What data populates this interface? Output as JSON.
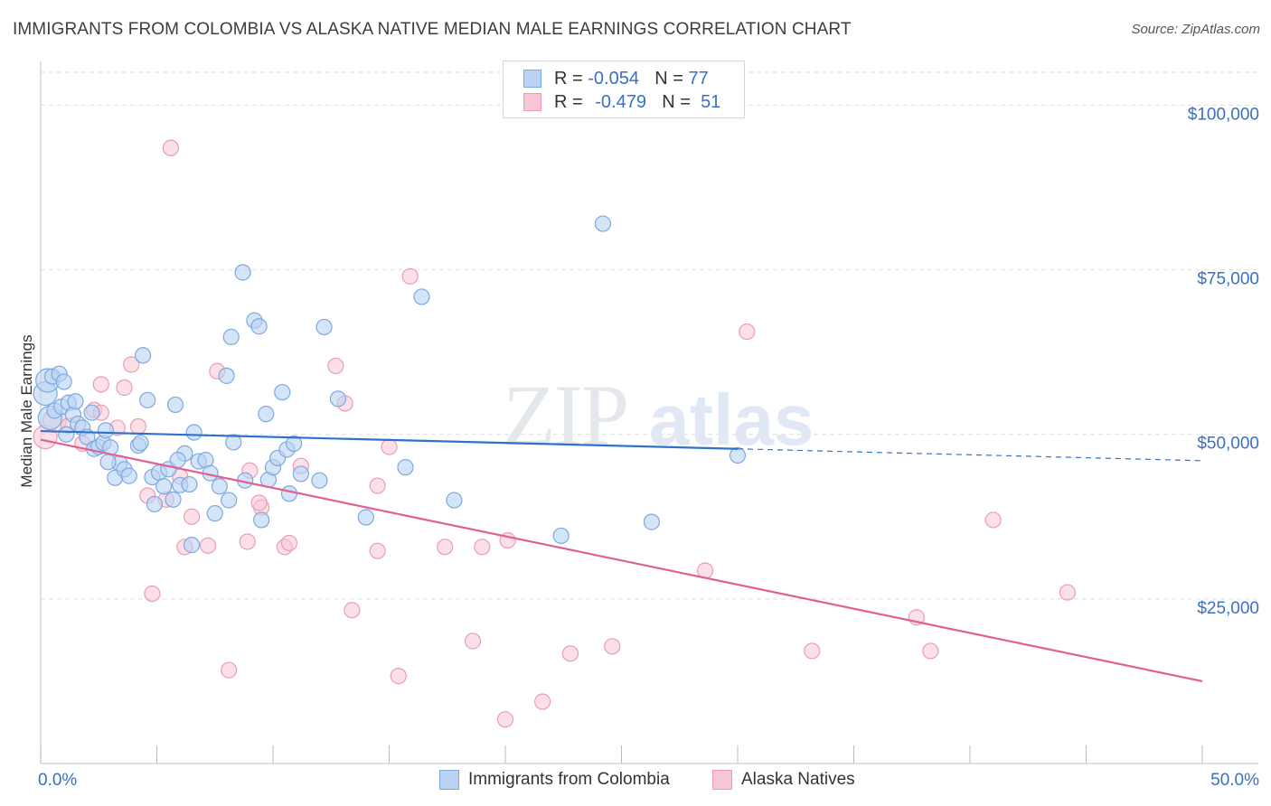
{
  "title": "IMMIGRANTS FROM COLOMBIA VS ALASKA NATIVE MEDIAN MALE EARNINGS CORRELATION CHART",
  "source": "Source: ZipAtlas.com",
  "watermark": {
    "zip": "ZIP",
    "atlas": "atlas"
  },
  "legend": {
    "r_label": "R =",
    "n_label": "N =",
    "series": [
      {
        "r": "-0.054",
        "n": "77"
      },
      {
        "r": "-0.479",
        "n": "51"
      }
    ]
  },
  "colors": {
    "blue_fill": "#b9d3f4",
    "blue_stroke": "#7ea8e2",
    "blue_line": "#2f72cc",
    "pink_fill": "#f8c7d6",
    "pink_stroke": "#ee9bb5",
    "pink_line": "#e0608f",
    "axis_text": "#3a70c4",
    "grid": "#dedede"
  },
  "chart_data": {
    "type": "scatter",
    "title": "IMMIGRANTS FROM COLOMBIA VS ALASKA NATIVE MEDIAN MALE EARNINGS CORRELATION CHART",
    "xlabel": "",
    "ylabel": "Median Male Earnings",
    "xlim": [
      0,
      50
    ],
    "ylim": [
      0,
      105000
    ],
    "x_tick_labels": [
      "0.0%",
      "50.0%"
    ],
    "y_ticks": [
      25000,
      50000,
      75000,
      100000
    ],
    "y_tick_labels": [
      "$25,000",
      "$50,000",
      "$75,000",
      "$100,000"
    ],
    "grid": true,
    "legend": "top-center",
    "series": [
      {
        "name": "Immigrants from Colombia",
        "r": -0.054,
        "n": 77,
        "trend": {
          "x": [
            0,
            30
          ],
          "y": [
            50500,
            47800
          ],
          "dashed_to_x": 50,
          "dashed_to_y": 46000
        },
        "points": [
          [
            0.2,
            56200,
            "lg"
          ],
          [
            0.3,
            58200,
            "lg"
          ],
          [
            0.4,
            52500,
            "lg"
          ],
          [
            0.5,
            58800,
            "md"
          ],
          [
            0.6,
            53600,
            "md"
          ],
          [
            0.8,
            59200,
            "md"
          ],
          [
            0.9,
            54200,
            "md"
          ],
          [
            1.0,
            58000,
            "md"
          ],
          [
            1.1,
            50000,
            "md"
          ],
          [
            1.2,
            54800,
            "md"
          ],
          [
            1.4,
            53000,
            "md"
          ],
          [
            1.5,
            55000,
            "md"
          ],
          [
            1.6,
            51600,
            "md"
          ],
          [
            1.8,
            51000,
            "md"
          ],
          [
            2.0,
            49600,
            "md"
          ],
          [
            2.2,
            53300,
            "md"
          ],
          [
            2.3,
            47800,
            "md"
          ],
          [
            2.5,
            48100,
            "md"
          ],
          [
            2.7,
            48700,
            "md"
          ],
          [
            2.8,
            50600,
            "md"
          ],
          [
            3.0,
            48000,
            "md"
          ],
          [
            3.2,
            43400,
            "md"
          ],
          [
            3.4,
            45600,
            "md"
          ],
          [
            3.6,
            44700,
            "md"
          ],
          [
            3.8,
            43700,
            "md"
          ],
          [
            4.2,
            48300,
            "md"
          ],
          [
            4.3,
            48700,
            "md"
          ],
          [
            4.4,
            62000,
            "md"
          ],
          [
            4.6,
            55200,
            "md"
          ],
          [
            4.8,
            43500,
            "md"
          ],
          [
            4.9,
            39400,
            "md"
          ],
          [
            5.1,
            44200,
            "md"
          ],
          [
            5.3,
            42100,
            "md"
          ],
          [
            5.5,
            44700,
            "md"
          ],
          [
            5.7,
            40100,
            "md"
          ],
          [
            5.8,
            54500,
            "md"
          ],
          [
            6.0,
            42300,
            "md"
          ],
          [
            6.2,
            47100,
            "md"
          ],
          [
            6.4,
            42400,
            "md"
          ],
          [
            6.5,
            33200,
            "md"
          ],
          [
            6.6,
            50300,
            "md"
          ],
          [
            6.8,
            45900,
            "md"
          ],
          [
            7.1,
            46100,
            "md"
          ],
          [
            7.3,
            44100,
            "md"
          ],
          [
            7.5,
            38000,
            "md"
          ],
          [
            7.7,
            42100,
            "md"
          ],
          [
            8.0,
            58900,
            "md"
          ],
          [
            8.1,
            40000,
            "md"
          ],
          [
            8.2,
            64800,
            "md"
          ],
          [
            8.3,
            48800,
            "md"
          ],
          [
            8.7,
            74600,
            "md"
          ],
          [
            8.8,
            43000,
            "md"
          ],
          [
            9.2,
            67300,
            "md"
          ],
          [
            9.4,
            66400,
            "md"
          ],
          [
            9.5,
            37000,
            "md"
          ],
          [
            9.7,
            53100,
            "md"
          ],
          [
            9.8,
            43100,
            "md"
          ],
          [
            10.0,
            45000,
            "md"
          ],
          [
            10.2,
            46400,
            "md"
          ],
          [
            10.4,
            56400,
            "md"
          ],
          [
            10.6,
            47700,
            "md"
          ],
          [
            10.7,
            41000,
            "md"
          ],
          [
            10.9,
            48600,
            "md"
          ],
          [
            11.2,
            44000,
            "md"
          ],
          [
            12.2,
            66300,
            "md"
          ],
          [
            12.8,
            55400,
            "md"
          ],
          [
            14.0,
            37400,
            "md"
          ],
          [
            16.4,
            70900,
            "md"
          ],
          [
            17.8,
            40000,
            "md"
          ],
          [
            22.4,
            34600,
            "md"
          ],
          [
            24.2,
            82000,
            "md"
          ],
          [
            26.3,
            36700,
            "md"
          ],
          [
            30.0,
            46800,
            "md"
          ],
          [
            15.7,
            45000,
            "md"
          ],
          [
            2.9,
            45800,
            "md"
          ],
          [
            12.0,
            43000,
            "md"
          ],
          [
            5.9,
            46100,
            "md"
          ]
        ]
      },
      {
        "name": "Alaska Natives",
        "r": -0.479,
        "n": 51,
        "trend": {
          "x": [
            0,
            50
          ],
          "y": [
            49200,
            12500
          ]
        },
        "points": [
          [
            0.2,
            49600,
            "lg"
          ],
          [
            0.6,
            52100,
            "lg"
          ],
          [
            1.2,
            51300,
            "md"
          ],
          [
            1.8,
            48600,
            "md"
          ],
          [
            2.3,
            53700,
            "md"
          ],
          [
            2.6,
            53300,
            "md"
          ],
          [
            2.6,
            57600,
            "md"
          ],
          [
            3.3,
            51000,
            "md"
          ],
          [
            3.6,
            57100,
            "md"
          ],
          [
            3.9,
            60600,
            "md"
          ],
          [
            4.2,
            51200,
            "md"
          ],
          [
            4.6,
            40700,
            "md"
          ],
          [
            4.8,
            25800,
            "md"
          ],
          [
            5.4,
            40100,
            "md"
          ],
          [
            5.6,
            93500,
            "md"
          ],
          [
            6.0,
            43600,
            "md"
          ],
          [
            6.2,
            32900,
            "md"
          ],
          [
            6.5,
            37500,
            "md"
          ],
          [
            7.2,
            33100,
            "md"
          ],
          [
            7.6,
            59600,
            "md"
          ],
          [
            8.1,
            14200,
            "md"
          ],
          [
            8.9,
            33700,
            "md"
          ],
          [
            9.5,
            38900,
            "md"
          ],
          [
            9.4,
            39600,
            "md"
          ],
          [
            10.5,
            32900,
            "md"
          ],
          [
            10.7,
            33500,
            "md"
          ],
          [
            11.2,
            45200,
            "md"
          ],
          [
            12.7,
            60400,
            "md"
          ],
          [
            13.1,
            54700,
            "md"
          ],
          [
            13.4,
            23300,
            "md"
          ],
          [
            14.5,
            42200,
            "md"
          ],
          [
            14.5,
            32300,
            "md"
          ],
          [
            15.0,
            48100,
            "md"
          ],
          [
            15.4,
            13300,
            "md"
          ],
          [
            15.9,
            74000,
            "md"
          ],
          [
            17.4,
            32900,
            "md"
          ],
          [
            18.6,
            18600,
            "md"
          ],
          [
            19.0,
            32900,
            "md"
          ],
          [
            20.0,
            6700,
            "md"
          ],
          [
            20.1,
            33900,
            "md"
          ],
          [
            21.6,
            9400,
            "md"
          ],
          [
            22.8,
            16700,
            "md"
          ],
          [
            24.6,
            17800,
            "md"
          ],
          [
            28.6,
            29300,
            "md"
          ],
          [
            30.4,
            65600,
            "md"
          ],
          [
            33.2,
            17100,
            "md"
          ],
          [
            37.7,
            22200,
            "md"
          ],
          [
            38.3,
            17100,
            "md"
          ],
          [
            41.0,
            37000,
            "md"
          ],
          [
            44.2,
            26000,
            "md"
          ],
          [
            9.0,
            44500,
            "md"
          ]
        ]
      }
    ]
  },
  "bottom_legend": [
    "Immigrants from Colombia",
    "Alaska Natives"
  ]
}
